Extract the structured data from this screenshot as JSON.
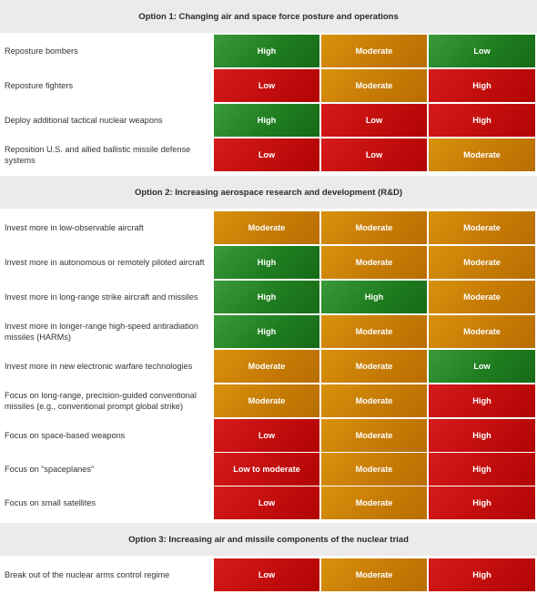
{
  "sections": [
    {
      "title": "Option 1: Changing air and space force posture and operations",
      "rows": [
        {
          "label": "Reposture bombers",
          "cells": [
            {
              "text": "High",
              "level": "high"
            },
            {
              "text": "Moderate",
              "level": "moderate"
            },
            {
              "text": "Low",
              "level": "high"
            }
          ]
        },
        {
          "label": "Reposture fighters",
          "cells": [
            {
              "text": "Low",
              "level": "low"
            },
            {
              "text": "Moderate",
              "level": "moderate"
            },
            {
              "text": "High",
              "level": "low"
            }
          ]
        },
        {
          "label": "Deploy additional tactical nuclear weapons",
          "cells": [
            {
              "text": "High",
              "level": "high"
            },
            {
              "text": "Low",
              "level": "low"
            },
            {
              "text": "High",
              "level": "low"
            }
          ]
        },
        {
          "label": "Reposition U.S. and allied ballistic missile defense systems",
          "cells": [
            {
              "text": "Low",
              "level": "low"
            },
            {
              "text": "Low",
              "level": "low"
            },
            {
              "text": "Moderate",
              "level": "moderate"
            }
          ]
        }
      ]
    },
    {
      "title": "Option 2: Increasing aerospace research and development (R&D)",
      "rows": [
        {
          "label": "Invest more in low-observable aircraft",
          "cells": [
            {
              "text": "Moderate",
              "level": "moderate"
            },
            {
              "text": "Moderate",
              "level": "moderate"
            },
            {
              "text": "Moderate",
              "level": "moderate"
            }
          ]
        },
        {
          "label": "Invest more in autonomous or remotely piloted aircraft",
          "cells": [
            {
              "text": "High",
              "level": "high"
            },
            {
              "text": "Moderate",
              "level": "moderate"
            },
            {
              "text": "Moderate",
              "level": "moderate"
            }
          ]
        },
        {
          "label": "Invest more in long-range strike aircraft and missiles",
          "cells": [
            {
              "text": "High",
              "level": "high"
            },
            {
              "text": "High",
              "level": "high"
            },
            {
              "text": "Moderate",
              "level": "moderate"
            }
          ]
        },
        {
          "label": "Invest more in longer-range high-speed antiradiation missiles (HARMs)",
          "cells": [
            {
              "text": "High",
              "level": "high"
            },
            {
              "text": "Moderate",
              "level": "moderate"
            },
            {
              "text": "Moderate",
              "level": "moderate"
            }
          ]
        },
        {
          "label": "Invest more in new electronic warfare technologies",
          "cells": [
            {
              "text": "Moderate",
              "level": "moderate"
            },
            {
              "text": "Moderate",
              "level": "moderate"
            },
            {
              "text": "Low",
              "level": "high"
            }
          ]
        },
        {
          "label": "Focus on long-range, precision-guided conventional missiles (e.g., conventional prompt global strike)",
          "cells": [
            {
              "text": "Moderate",
              "level": "moderate"
            },
            {
              "text": "Moderate",
              "level": "moderate"
            },
            {
              "text": "High",
              "level": "low"
            }
          ]
        },
        {
          "label": "Focus on space-based weapons",
          "cells": [
            {
              "text": "Low",
              "level": "low"
            },
            {
              "text": "Moderate",
              "level": "moderate"
            },
            {
              "text": "High",
              "level": "low"
            }
          ]
        },
        {
          "label": "Focus on “spaceplanes”",
          "cells": [
            {
              "text": "Low to moderate",
              "level": "low"
            },
            {
              "text": "Moderate",
              "level": "moderate"
            },
            {
              "text": "High",
              "level": "low"
            }
          ]
        },
        {
          "label": "Focus on small satellites",
          "cells": [
            {
              "text": "Low",
              "level": "low"
            },
            {
              "text": "Moderate",
              "level": "moderate"
            },
            {
              "text": "High",
              "level": "low"
            }
          ]
        }
      ]
    },
    {
      "title": "Option 3: Increasing air and missile components of the nuclear triad",
      "rows": [
        {
          "label": "Break out of the nuclear arms control regime",
          "cells": [
            {
              "text": "Low",
              "level": "low"
            },
            {
              "text": "Moderate",
              "level": "moderate"
            },
            {
              "text": "High",
              "level": "low"
            }
          ]
        }
      ]
    }
  ]
}
